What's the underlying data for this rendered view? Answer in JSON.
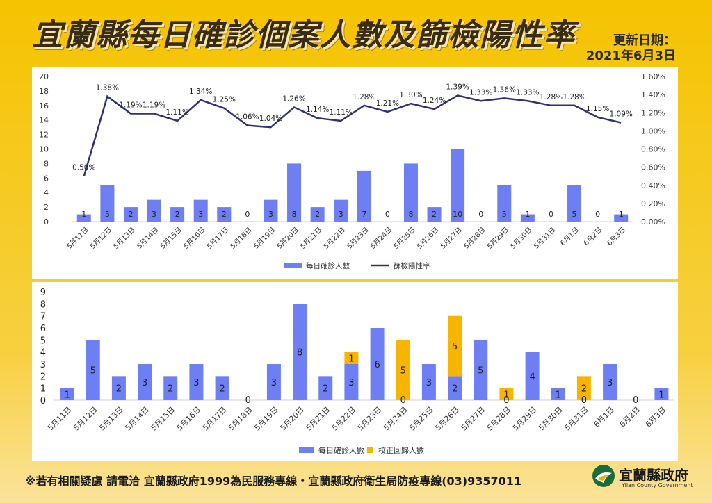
{
  "title": "宜蘭縣每日確診個案人數及篩檢陽性率",
  "update": {
    "label": "更新日期：",
    "date": "2021年6月3日"
  },
  "footer": {
    "text": "※若有相關疑慮 請電洽  宜蘭縣政府1999為民服務專線・宜蘭縣政府衛生局防疫專線(03)9357011",
    "org_name": "宜蘭縣政府",
    "org_name_en": "Yilan County Government"
  },
  "colors": {
    "bar": "#6d7ff2",
    "line": "#2f3270",
    "correction": "#f7b500"
  },
  "chart_data": [
    {
      "type": "bar",
      "secondary_type": "line",
      "categories": [
        "5月11日",
        "5月12日",
        "5月13日",
        "5月14日",
        "5月15日",
        "5月16日",
        "5月17日",
        "5月18日",
        "5月19日",
        "5月20日",
        "5月21日",
        "5月22日",
        "5月23日",
        "5月24日",
        "5月25日",
        "5月26日",
        "5月27日",
        "5月28日",
        "5月29日",
        "5月30日",
        "5月31日",
        "6月1日",
        "6月2日",
        "6月3日"
      ],
      "series": [
        {
          "name": "每日確診人數",
          "type": "bar",
          "axis": "left",
          "values": [
            1,
            5,
            2,
            3,
            2,
            3,
            2,
            0,
            3,
            8,
            2,
            3,
            7,
            0,
            8,
            2,
            10,
            0,
            5,
            1,
            0,
            5,
            0,
            1
          ]
        },
        {
          "name": "篩檢陽性率",
          "type": "line",
          "axis": "right",
          "values": [
            0.5,
            1.38,
            1.19,
            1.19,
            1.11,
            1.34,
            1.25,
            1.06,
            1.04,
            1.26,
            1.14,
            1.11,
            1.28,
            1.21,
            1.3,
            1.24,
            1.39,
            1.33,
            1.36,
            1.33,
            1.28,
            1.28,
            1.15,
            1.09
          ],
          "labels": [
            "0.50%",
            "1.38%",
            "1.19%",
            "1.19%",
            "1.11%",
            "1.34%",
            "1.25%",
            "1.06%",
            "1.04%",
            "1.26%",
            "1.14%",
            "1.11%",
            "1.28%",
            "1.21%",
            "1.30%",
            "1.24%",
            "1.39%",
            "1.33%",
            "1.36%",
            "1.33%",
            "1.28%",
            "1.28%",
            "1.15%",
            "1.09%"
          ]
        }
      ],
      "ylim_left": [
        0,
        20
      ],
      "yticks_left": [
        "0",
        "2",
        "4",
        "6",
        "8",
        "10",
        "12",
        "14",
        "16",
        "18",
        "20"
      ],
      "ylim_right": [
        0,
        1.6
      ],
      "yticks_right": [
        "0.00%",
        "0.20%",
        "0.40%",
        "0.60%",
        "0.80%",
        "1.00%",
        "1.20%",
        "1.40%",
        "1.60%"
      ],
      "legend_position": "bottom"
    },
    {
      "type": "bar",
      "stacked": true,
      "categories": [
        "5月11日",
        "5月12日",
        "5月13日",
        "5月14日",
        "5月15日",
        "5月16日",
        "5月17日",
        "5月18日",
        "5月19日",
        "5月20日",
        "5月21日",
        "5月22日",
        "5月23日",
        "5月24日",
        "5月25日",
        "5月26日",
        "5月27日",
        "5月28日",
        "5月29日",
        "5月30日",
        "5月31日",
        "6月1日",
        "6月2日",
        "6月3日"
      ],
      "series": [
        {
          "name": "每日確診人數",
          "values": [
            1,
            5,
            2,
            3,
            2,
            3,
            2,
            0,
            3,
            8,
            2,
            3,
            6,
            0,
            3,
            2,
            5,
            0,
            4,
            1,
            0,
            3,
            0,
            1
          ],
          "labels": [
            "1",
            "5",
            "2",
            "3",
            "2",
            "3",
            "2",
            "0",
            "3",
            "8",
            "2",
            "3",
            "6",
            "0",
            "3",
            "2",
            "5",
            "0",
            "4",
            "1",
            "0",
            "3",
            "0",
            "1"
          ]
        },
        {
          "name": "校正回歸人數",
          "values": [
            0,
            0,
            0,
            0,
            0,
            0,
            0,
            0,
            0,
            0,
            0,
            1,
            0,
            5,
            0,
            5,
            0,
            1,
            0,
            0,
            2,
            0,
            0,
            0
          ],
          "labels": [
            "",
            "",
            "",
            "",
            "",
            "",
            "",
            "",
            "",
            "",
            "",
            "1",
            "",
            "5",
            "",
            "5",
            "",
            "1",
            "",
            "",
            "2",
            "",
            "",
            ""
          ]
        }
      ],
      "ylim": [
        0,
        9
      ],
      "yticks": [
        "0",
        "1",
        "2",
        "3",
        "4",
        "5",
        "6",
        "7",
        "8",
        "9"
      ],
      "legend_position": "bottom"
    }
  ]
}
